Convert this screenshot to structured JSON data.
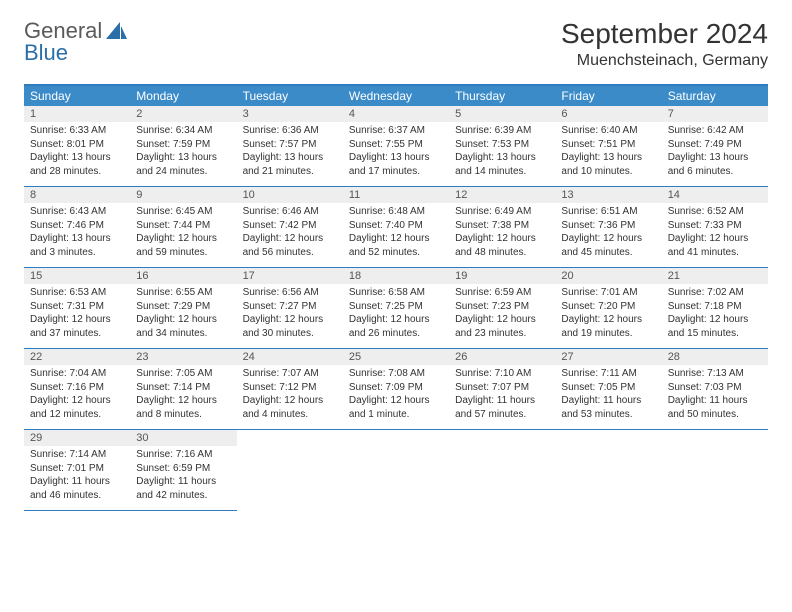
{
  "logo": {
    "text1": "General",
    "text2": "Blue"
  },
  "title": "September 2024",
  "location": "Muenchsteinach, Germany",
  "colors": {
    "header_bg": "#3b8bc9",
    "header_text": "#ffffff",
    "rule": "#2f7bbf",
    "daynum_bg": "#eeeeee",
    "body_text": "#333333",
    "logo_gray": "#5a5a5a",
    "logo_blue": "#2b6fa8"
  },
  "weekdays": [
    "Sunday",
    "Monday",
    "Tuesday",
    "Wednesday",
    "Thursday",
    "Friday",
    "Saturday"
  ],
  "days": [
    {
      "n": "1",
      "sr": "6:33 AM",
      "ss": "8:01 PM",
      "dl": "13 hours and 28 minutes."
    },
    {
      "n": "2",
      "sr": "6:34 AM",
      "ss": "7:59 PM",
      "dl": "13 hours and 24 minutes."
    },
    {
      "n": "3",
      "sr": "6:36 AM",
      "ss": "7:57 PM",
      "dl": "13 hours and 21 minutes."
    },
    {
      "n": "4",
      "sr": "6:37 AM",
      "ss": "7:55 PM",
      "dl": "13 hours and 17 minutes."
    },
    {
      "n": "5",
      "sr": "6:39 AM",
      "ss": "7:53 PM",
      "dl": "13 hours and 14 minutes."
    },
    {
      "n": "6",
      "sr": "6:40 AM",
      "ss": "7:51 PM",
      "dl": "13 hours and 10 minutes."
    },
    {
      "n": "7",
      "sr": "6:42 AM",
      "ss": "7:49 PM",
      "dl": "13 hours and 6 minutes."
    },
    {
      "n": "8",
      "sr": "6:43 AM",
      "ss": "7:46 PM",
      "dl": "13 hours and 3 minutes."
    },
    {
      "n": "9",
      "sr": "6:45 AM",
      "ss": "7:44 PM",
      "dl": "12 hours and 59 minutes."
    },
    {
      "n": "10",
      "sr": "6:46 AM",
      "ss": "7:42 PM",
      "dl": "12 hours and 56 minutes."
    },
    {
      "n": "11",
      "sr": "6:48 AM",
      "ss": "7:40 PM",
      "dl": "12 hours and 52 minutes."
    },
    {
      "n": "12",
      "sr": "6:49 AM",
      "ss": "7:38 PM",
      "dl": "12 hours and 48 minutes."
    },
    {
      "n": "13",
      "sr": "6:51 AM",
      "ss": "7:36 PM",
      "dl": "12 hours and 45 minutes."
    },
    {
      "n": "14",
      "sr": "6:52 AM",
      "ss": "7:33 PM",
      "dl": "12 hours and 41 minutes."
    },
    {
      "n": "15",
      "sr": "6:53 AM",
      "ss": "7:31 PM",
      "dl": "12 hours and 37 minutes."
    },
    {
      "n": "16",
      "sr": "6:55 AM",
      "ss": "7:29 PM",
      "dl": "12 hours and 34 minutes."
    },
    {
      "n": "17",
      "sr": "6:56 AM",
      "ss": "7:27 PM",
      "dl": "12 hours and 30 minutes."
    },
    {
      "n": "18",
      "sr": "6:58 AM",
      "ss": "7:25 PM",
      "dl": "12 hours and 26 minutes."
    },
    {
      "n": "19",
      "sr": "6:59 AM",
      "ss": "7:23 PM",
      "dl": "12 hours and 23 minutes."
    },
    {
      "n": "20",
      "sr": "7:01 AM",
      "ss": "7:20 PM",
      "dl": "12 hours and 19 minutes."
    },
    {
      "n": "21",
      "sr": "7:02 AM",
      "ss": "7:18 PM",
      "dl": "12 hours and 15 minutes."
    },
    {
      "n": "22",
      "sr": "7:04 AM",
      "ss": "7:16 PM",
      "dl": "12 hours and 12 minutes."
    },
    {
      "n": "23",
      "sr": "7:05 AM",
      "ss": "7:14 PM",
      "dl": "12 hours and 8 minutes."
    },
    {
      "n": "24",
      "sr": "7:07 AM",
      "ss": "7:12 PM",
      "dl": "12 hours and 4 minutes."
    },
    {
      "n": "25",
      "sr": "7:08 AM",
      "ss": "7:09 PM",
      "dl": "12 hours and 1 minute."
    },
    {
      "n": "26",
      "sr": "7:10 AM",
      "ss": "7:07 PM",
      "dl": "11 hours and 57 minutes."
    },
    {
      "n": "27",
      "sr": "7:11 AM",
      "ss": "7:05 PM",
      "dl": "11 hours and 53 minutes."
    },
    {
      "n": "28",
      "sr": "7:13 AM",
      "ss": "7:03 PM",
      "dl": "11 hours and 50 minutes."
    },
    {
      "n": "29",
      "sr": "7:14 AM",
      "ss": "7:01 PM",
      "dl": "11 hours and 46 minutes."
    },
    {
      "n": "30",
      "sr": "7:16 AM",
      "ss": "6:59 PM",
      "dl": "11 hours and 42 minutes."
    }
  ],
  "labels": {
    "sunrise": "Sunrise: ",
    "sunset": "Sunset: ",
    "daylight": "Daylight: "
  },
  "layout": {
    "start_weekday": 0,
    "columns": 7,
    "rows": 5
  }
}
